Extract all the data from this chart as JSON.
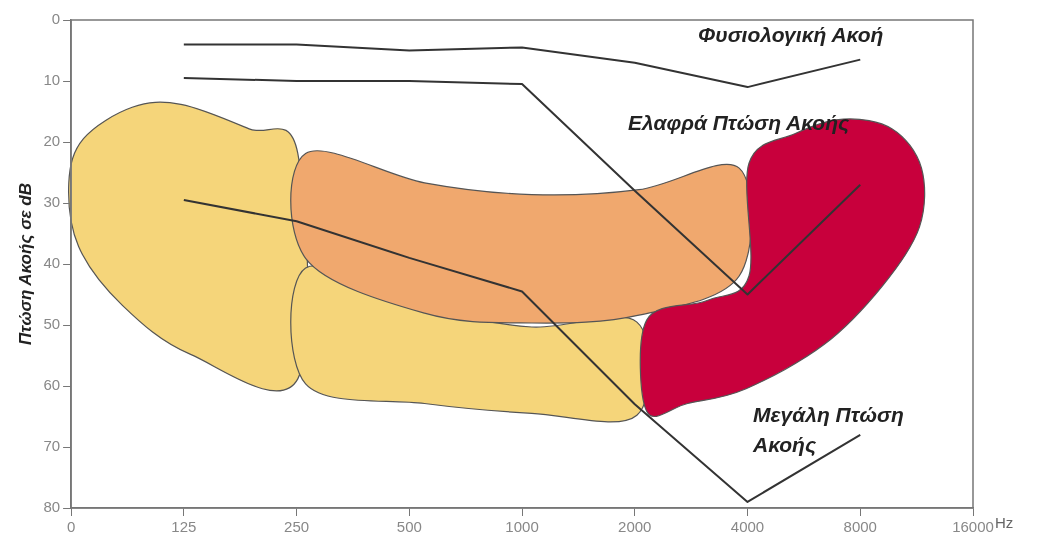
{
  "chart_data": {
    "type": "line",
    "categories": [
      "0",
      "125",
      "250",
      "500",
      "1000",
      "2000",
      "4000",
      "8000",
      "16000"
    ],
    "series": [
      {
        "name": "Φυσιολογική Ακοή",
        "color": "#333333",
        "values": [
          null,
          4,
          4,
          5,
          4.5,
          7,
          11,
          6.5,
          null
        ]
      },
      {
        "name": "Ελαφρά Πτώση Ακοής",
        "color": "#333333",
        "values": [
          null,
          9.5,
          10,
          10,
          10.5,
          28,
          45,
          27,
          null
        ]
      },
      {
        "name": "Μεγάλη Πτώση Ακοής",
        "color": "#333333",
        "values": [
          null,
          29.5,
          33,
          39,
          44.5,
          63,
          79,
          68,
          null
        ]
      }
    ],
    "xlabel": "Hz",
    "ylabel": "Πτώση Ακοής σε dB",
    "ylim": [
      80,
      0
    ],
    "yticks": [
      0,
      10,
      20,
      30,
      40,
      50,
      60,
      70,
      80
    ],
    "grid": false,
    "legend": false,
    "marker": "none",
    "line_style": "solid"
  }
}
